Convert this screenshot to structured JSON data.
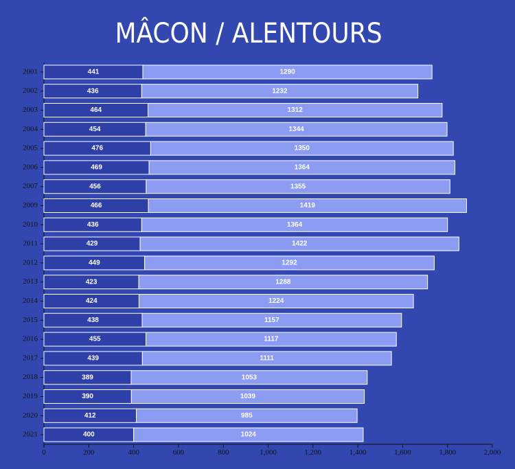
{
  "chart_data": {
    "type": "stacked-bar-horizontal",
    "title": "MÂCON / ALENTOURS",
    "categories": [
      "2001",
      "2002",
      "2003",
      "2004",
      "2005",
      "2006",
      "2007",
      "2009",
      "2010",
      "2011",
      "2012",
      "2013",
      "2014",
      "2015",
      "2016",
      "2017",
      "2018",
      "2019",
      "2020",
      "2021"
    ],
    "series": [
      {
        "color": "#2f3fa8",
        "values": [
          441,
          436,
          464,
          454,
          476,
          469,
          456,
          466,
          436,
          429,
          449,
          423,
          424,
          438,
          455,
          439,
          389,
          390,
          412,
          400
        ]
      },
      {
        "color": "#8c9cf2",
        "values": [
          1290,
          1232,
          1312,
          1344,
          1350,
          1364,
          1355,
          1419,
          1364,
          1422,
          1292,
          1288,
          1224,
          1157,
          1117,
          1111,
          1053,
          1039,
          985,
          1024
        ]
      }
    ],
    "xlim": [
      0,
      2000
    ],
    "xticks": [
      0,
      200,
      400,
      600,
      800,
      {
        "value": 1000,
        "label": "1,000"
      },
      {
        "value": 1200,
        "label": "1,200"
      },
      {
        "value": 1400,
        "label": "1,400"
      },
      {
        "value": 1600,
        "label": "1,600"
      },
      {
        "value": 1800,
        "label": "1,800"
      },
      {
        "value": 2000,
        "label": "2,000"
      }
    ]
  }
}
